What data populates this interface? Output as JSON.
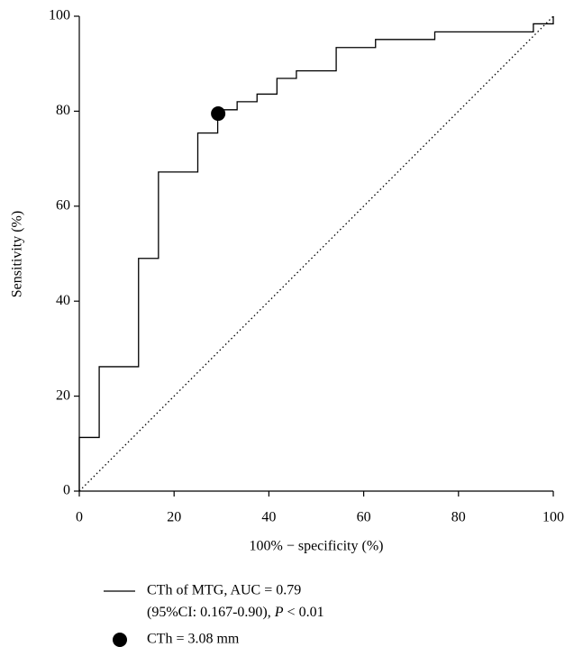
{
  "chart_data": {
    "type": "line",
    "x_label": "100% − specificity (%)",
    "y_label": "Sensitivity (%)",
    "xlim": [
      0,
      100
    ],
    "ylim": [
      0,
      100
    ],
    "xticks": [
      0,
      20,
      40,
      60,
      80,
      100
    ],
    "yticks": [
      0,
      20,
      40,
      60,
      80,
      100
    ],
    "grid": false,
    "series": [
      {
        "name": "CTh of MTG, AUC = 0.79",
        "legend_note": [
          "(95%CI: 0.167-0.90), ",
          "P",
          " < 0.01"
        ],
        "color": "#000000",
        "style": "solid",
        "x": [
          0,
          0,
          4.2,
          4.2,
          12.5,
          12.5,
          16.7,
          16.7,
          25,
          25,
          29.2,
          29.2,
          33.3,
          33.3,
          37.5,
          37.5,
          41.7,
          41.7,
          45.8,
          45.8,
          54.2,
          54.2,
          62.5,
          62.5,
          75,
          75,
          95.8,
          95.8,
          100,
          100
        ],
        "values": [
          0,
          11.3,
          11.3,
          26.2,
          26.2,
          49,
          49,
          67.2,
          67.2,
          75.4,
          75.4,
          80.3,
          80.3,
          82,
          82,
          83.6,
          83.6,
          86.9,
          86.9,
          88.5,
          88.5,
          93.4,
          93.4,
          95.1,
          95.1,
          96.7,
          96.7,
          98.4,
          98.4,
          100
        ]
      },
      {
        "color": "#000000",
        "style": "dotted",
        "x": [
          0,
          100
        ],
        "values": [
          0,
          100
        ]
      }
    ],
    "points": [
      {
        "name": "CTh = 3.08 mm",
        "color": "#000000",
        "x": 29.3,
        "y": 79.5
      }
    ]
  }
}
